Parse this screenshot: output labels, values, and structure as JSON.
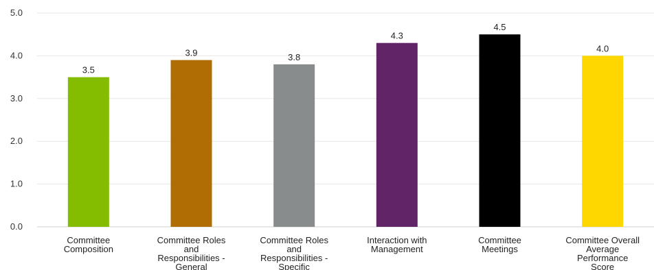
{
  "chart_data": {
    "type": "bar",
    "categories": [
      [
        "Committee",
        "Composition"
      ],
      [
        "Committee Roles",
        "and",
        "Responsibilities -",
        "General"
      ],
      [
        "Committee Roles",
        "and",
        "Responsibilities -",
        "Specific"
      ],
      [
        "Interaction with",
        "Management"
      ],
      [
        "Committee",
        "Meetings"
      ],
      [
        "Committee Overall",
        "Average",
        "Performance",
        "Score"
      ]
    ],
    "values": [
      3.5,
      3.9,
      3.8,
      4.3,
      4.5,
      4.0
    ],
    "data_labels": [
      "3.5",
      "3.9",
      "3.8",
      "4.3",
      "4.5",
      "4.0"
    ],
    "colors": [
      "#84bd00",
      "#b06d03",
      "#898c8c",
      "#612466",
      "#000000",
      "#ffd700"
    ],
    "ylim": [
      0,
      5
    ],
    "yticks": [
      "0.0",
      "1.0",
      "2.0",
      "3.0",
      "4.0",
      "5.0"
    ],
    "grid": true,
    "title": "",
    "xlabel": "",
    "ylabel": ""
  }
}
